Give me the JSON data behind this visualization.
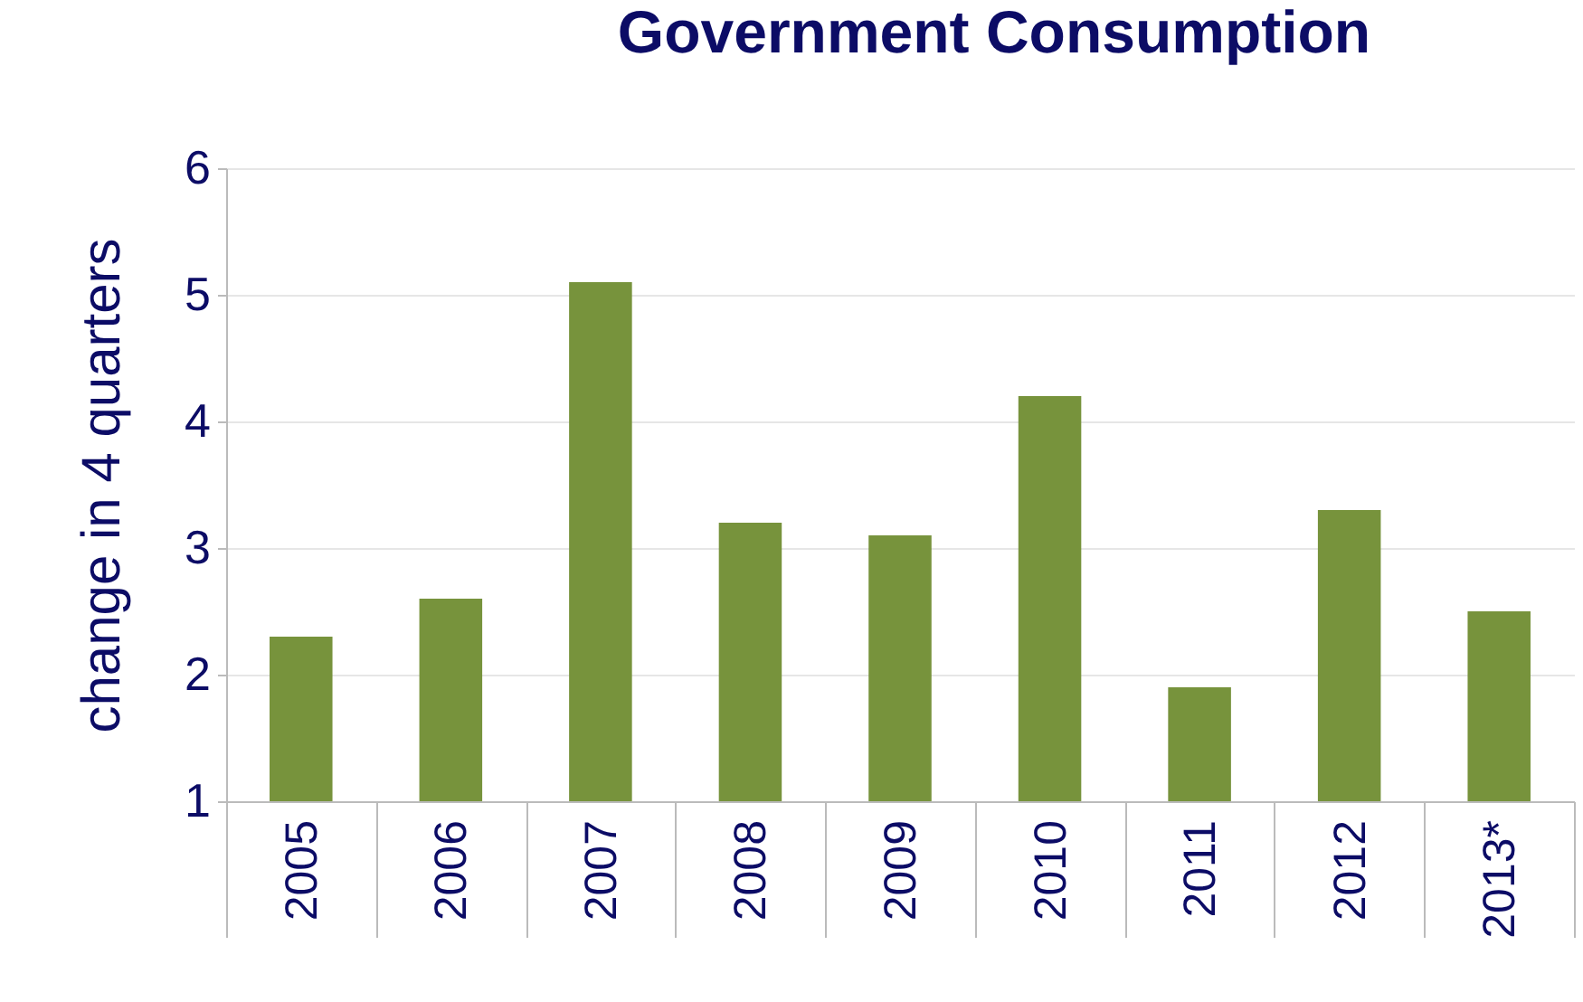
{
  "chart_data": {
    "type": "bar",
    "title": "Government Consumption",
    "ylabel": "change in 4 quarters",
    "categories": [
      "2005",
      "2006",
      "2007",
      "2008",
      "2009",
      "2010",
      "2011",
      "2012",
      "2013*"
    ],
    "values": [
      2.3,
      2.6,
      5.1,
      3.2,
      3.1,
      4.2,
      1.9,
      3.3,
      2.5
    ],
    "color": "#77933c",
    "ylim": [
      1,
      6
    ],
    "yticks": [
      1,
      2,
      3,
      4,
      5,
      6
    ],
    "grid": "y"
  }
}
